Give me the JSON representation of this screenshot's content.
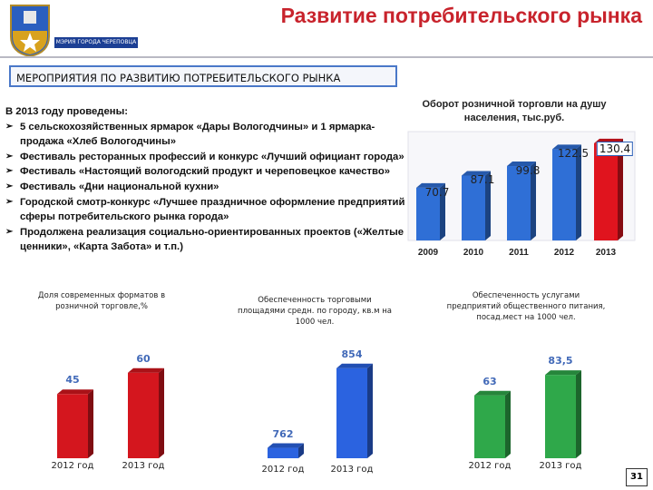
{
  "header": {
    "title": "Развитие потребительского рынка",
    "logo_text": "МЭРИЯ ГОРОДА ЧЕРЕПОВЦА"
  },
  "section": "МЕРОПРИЯТИЯ ПО РАЗВИТИЮ ПОТРЕБИТЕЛЬСКОГО РЫНКА",
  "text": {
    "intro": "В 2013 году проведены:",
    "items": [
      "5 сельскохозяйственных ярмарок «Дары Вологодчины» и 1 ярмарка-продажа «Хлеб Вологодчины»",
      "Фестиваль ресторанных профессий и конкурс «Лучший официант города»",
      "Фестиваль «Настоящий вологодский продукт и череповецкое качество»",
      "Фестиваль «Дни национальной кухни»",
      "Городской смотр-конкурс «Лучшее праздничное оформление предприятий сферы потребительского рынка города»",
      "Продолжена реализация социально-ориентированных проектов («Желтые ценники», «Карта Забота» и т.п.)"
    ]
  },
  "chart_data": [
    {
      "type": "bar",
      "title": "Оборот розничной торговли на душу населения, тыс.руб.",
      "categories": [
        "2009",
        "2010",
        "2011",
        "2012",
        "2013"
      ],
      "values": [
        70.7,
        87.1,
        99.8,
        122.5,
        130.4
      ],
      "colors": [
        "#2f6fd6",
        "#2f6fd6",
        "#2f6fd6",
        "#2f6fd6",
        "#e0141e"
      ],
      "ylim": [
        0,
        140
      ]
    },
    {
      "type": "bar",
      "title": "Доля современных форматов в розничной торговле,%",
      "categories": [
        "2012 год",
        "2013 год"
      ],
      "values": [
        45,
        60
      ],
      "color": "#d4161e",
      "ylim": [
        0,
        70
      ]
    },
    {
      "type": "bar",
      "title": "Обеспеченность торговыми площадями средн. по городу, кв.м на 1000 чел.",
      "categories": [
        "2012 год",
        "2013 год"
      ],
      "values": [
        762,
        854
      ],
      "color": "#2b63e0",
      "ylim": [
        750,
        860
      ]
    },
    {
      "type": "bar",
      "title": "Обеспеченность услугами предприятий общественного питания, посад.мест на 1000 чел.",
      "categories": [
        "2012 год",
        "2013 год"
      ],
      "values": [
        63,
        83.5
      ],
      "value_labels": [
        "63",
        "83,5"
      ],
      "color": "#2fa84a",
      "ylim": [
        0,
        100
      ]
    }
  ],
  "page_number": "31"
}
